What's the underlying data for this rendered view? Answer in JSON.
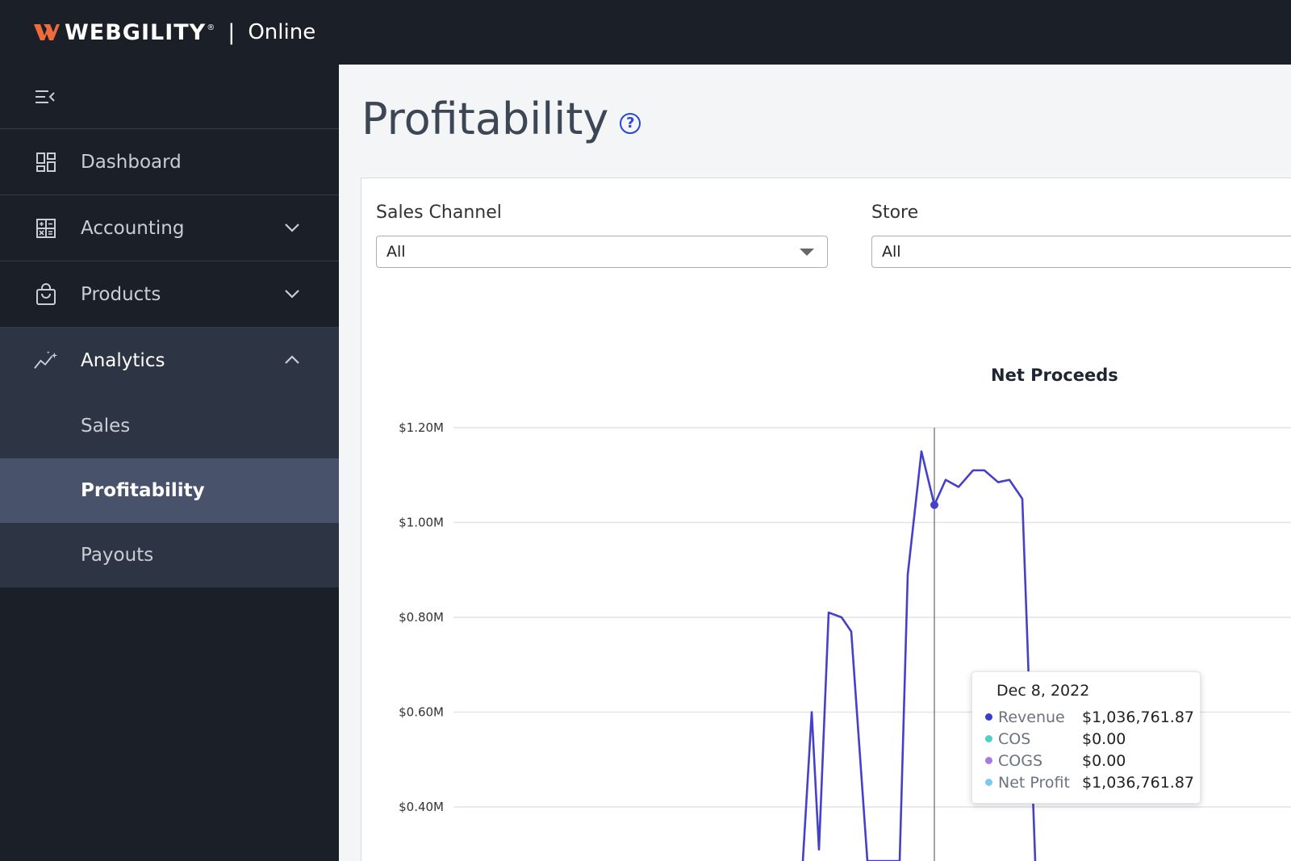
{
  "header": {
    "brand": "WEBGILITY",
    "reg": "®",
    "separator": "|",
    "product": "Online"
  },
  "sidebar": {
    "items": [
      {
        "label": "Dashboard",
        "icon": "dashboard-icon"
      },
      {
        "label": "Accounting",
        "icon": "calculator-icon"
      },
      {
        "label": "Products",
        "icon": "shopping-bag-icon"
      },
      {
        "label": "Analytics",
        "icon": "analytics-icon"
      }
    ],
    "analytics_sub": [
      "Sales",
      "Profitability",
      "Payouts"
    ],
    "active_sub": "Profitability"
  },
  "page": {
    "title": "Profitability",
    "help_glyph": "?"
  },
  "filters": {
    "sales_channel_label": "Sales Channel",
    "sales_channel_value": "All",
    "store_label": "Store",
    "store_value": "All"
  },
  "chart_data": {
    "type": "line",
    "title": "Net Proceeds",
    "y_ticks": [
      "$1.20M",
      "$1.00M",
      "$0.80M",
      "$0.60M",
      "$0.40M"
    ],
    "y_tick_values": [
      1.2,
      1.0,
      0.8,
      0.6,
      0.4
    ],
    "ylim_visible": [
      0.35,
      1.25
    ],
    "grid": true,
    "series": [
      {
        "name": "Revenue",
        "color": "#4540c9",
        "values": [
          0.2,
          0.6,
          0.31,
          0.81,
          0.8,
          0.77,
          0.2,
          0.18,
          0.89,
          1.15,
          1.037,
          1.09,
          1.075,
          1.11,
          1.11,
          1.085,
          1.09,
          1.05,
          0.2
        ]
      }
    ],
    "hover_index": 10,
    "tooltip": {
      "date": "Dec 8, 2022",
      "rows": [
        {
          "name": "Revenue",
          "value": "$1,036,761.87",
          "color": "#3c3cc4"
        },
        {
          "name": "COS",
          "value": "$0.00",
          "color": "#4fd1c5"
        },
        {
          "name": "COGS",
          "value": "$0.00",
          "color": "#a878e8"
        },
        {
          "name": "Net Profit",
          "value": "$1,036,761.87",
          "color": "#7cc8f0"
        }
      ]
    }
  }
}
